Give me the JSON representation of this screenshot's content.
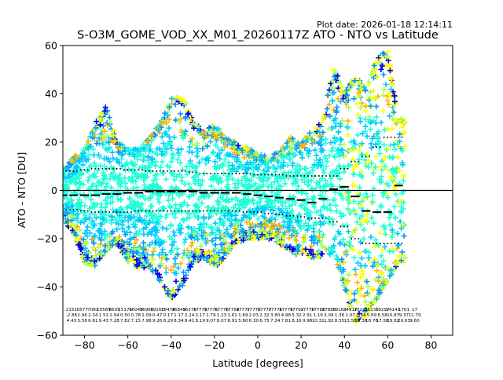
{
  "chart_data": {
    "type": "scatter",
    "plot_date": "Plot date: 2026-01-18 12:14:11",
    "title": "S-O3M_GOME_VOD_XX_M01_20260117Z ATO - NTO vs Latitude",
    "xlabel": "Latitude [degrees]",
    "ylabel": "ATO - NTO [DU]",
    "xlim": [
      -90,
      90
    ],
    "ylim": [
      -60,
      60
    ],
    "xticks": [
      -80,
      -60,
      -40,
      -20,
      0,
      20,
      40,
      60,
      80
    ],
    "yticks": [
      -60,
      -40,
      -20,
      0,
      20,
      40,
      60
    ],
    "xtick_labels": [
      "−80",
      "−60",
      "−40",
      "−20",
      "0",
      "20",
      "40",
      "60",
      "80"
    ],
    "ytick_labels": [
      "−60",
      "−40",
      "−20",
      "0",
      "20",
      "40",
      "60"
    ],
    "grid": false,
    "zero_line": true,
    "colors": {
      "marker_palette": [
        "#00c8ff",
        "#0096ff",
        "#1effd8",
        "#a0ff5a",
        "#ffff00",
        "#ffb400",
        "#0000e6"
      ],
      "mean_line": "#000000",
      "axes": "#000000"
    },
    "band_envelope": {
      "lat": [
        -90,
        -85,
        -80,
        -75,
        -70,
        -65,
        -60,
        -55,
        -50,
        -45,
        -40,
        -35,
        -30,
        -25,
        -20,
        -15,
        -10,
        -5,
        0,
        5,
        10,
        15,
        20,
        25,
        30,
        35,
        40,
        45,
        50,
        55,
        60,
        65
      ],
      "upper": [
        10,
        14,
        17,
        28,
        35,
        20,
        18,
        17,
        22,
        28,
        38,
        40,
        30,
        24,
        28,
        22,
        20,
        18,
        15,
        14,
        16,
        22,
        20,
        25,
        30,
        52,
        40,
        48,
        42,
        55,
        58,
        30
      ],
      "lower": [
        -12,
        -18,
        -30,
        -32,
        -25,
        -22,
        -30,
        -32,
        -32,
        -38,
        -45,
        -40,
        -30,
        -28,
        -32,
        -28,
        -22,
        -20,
        -20,
        -20,
        -22,
        -26,
        -28,
        -28,
        -28,
        -26,
        -40,
        -55,
        -52,
        -45,
        -38,
        -30
      ]
    },
    "mean_bins": {
      "lat": [
        -90,
        -85,
        -80,
        -75,
        -70,
        -65,
        -60,
        -55,
        -50,
        -45,
        -40,
        -35,
        -30,
        -25,
        -20,
        -15,
        -10,
        -5,
        0,
        5,
        10,
        15,
        20,
        25,
        30,
        35,
        40,
        45,
        50,
        55,
        60,
        65
      ],
      "mean": [
        -2,
        -2,
        -2,
        -2,
        -1.5,
        -1.5,
        -1,
        -1,
        -0.5,
        -0.5,
        -0.5,
        -0.5,
        -0.5,
        -1,
        -1,
        -1,
        -1,
        -1.5,
        -2,
        -2.5,
        -3,
        -3.5,
        -4,
        -5,
        -3.5,
        0.5,
        1.5,
        -2.5,
        -8.5,
        -9,
        -9,
        2
      ],
      "plus_sd": [
        8,
        8,
        8.5,
        9,
        9,
        9,
        8.5,
        8.5,
        8,
        8,
        8,
        8,
        7.5,
        7,
        7,
        7,
        7,
        7,
        6.5,
        6.5,
        6.5,
        6,
        6,
        6,
        6,
        6,
        9,
        12,
        14,
        18,
        22,
        22
      ],
      "minus_sd": [
        -8,
        -8,
        -8.5,
        -9,
        -9,
        -9,
        -9,
        -8.5,
        -8.5,
        -8.5,
        -8.5,
        -8.5,
        -8.5,
        -8.5,
        -8.5,
        -8.5,
        -8.5,
        -9,
        -9,
        -9.5,
        -10,
        -10.5,
        -11,
        -11.5,
        -11.5,
        -13,
        -15,
        -20,
        -22,
        -22,
        -22,
        -22
      ]
    },
    "stats_table": {
      "col1": [
        "2151",
        "6577",
        "7081",
        "10585",
        "8605",
        "15176",
        "16049",
        "16966",
        "19163",
        "18474",
        "16849",
        "16379",
        "17779",
        "17776",
        "17776",
        "17764",
        "17777",
        "17776",
        "17777",
        "17776",
        "17779",
        "17792",
        "17779",
        "17788",
        "17880",
        "19163",
        "24917",
        "15221",
        "16235",
        "19297",
        "24141",
        "1761",
        "17"
      ],
      "col2": [
        "-2.86",
        "2.96",
        "2.34",
        "1.51",
        "2.94",
        "0.50",
        "0.78",
        "1.09",
        "0.47",
        "0.17",
        "1.17",
        "2.24",
        "2.17",
        "1.79",
        "1.23",
        "1.61",
        "1.69",
        "2.03",
        "2.32",
        "3.80",
        "4.98",
        "5.32",
        "2.91",
        "1.16",
        "3.09",
        "1.36",
        "1.07",
        "2.94",
        "5.69",
        "8.58",
        "10.87",
        "9.37",
        "11.79"
      ],
      "col3": [
        "4.43",
        "5.56",
        "6.61",
        "9.43",
        "7.28",
        "7.82",
        "7.15",
        "7.98",
        "9.26",
        "8.29",
        "8.34",
        "8.41",
        "8.19",
        "9.07",
        "8.07",
        "8.91",
        "5.80",
        "6.30",
        "6.75",
        "7.34",
        "7.81",
        "8.16",
        "9.98",
        "10.31",
        "1.82",
        "8.55",
        "13.56",
        "19.36",
        "18.76",
        "17.58",
        "19.82",
        "20.63",
        "9.60"
      ]
    }
  }
}
